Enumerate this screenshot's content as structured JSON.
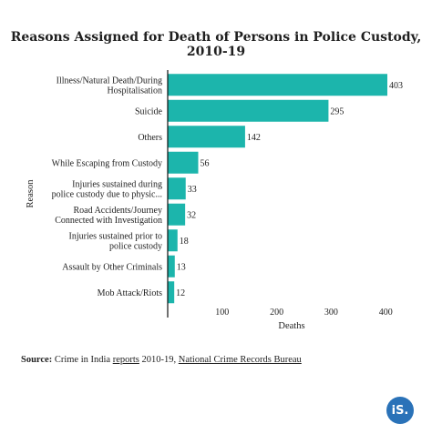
{
  "chart_data": {
    "type": "bar",
    "orientation": "horizontal",
    "title": "Reasons Assigned for Death of Persons in Police Custody, 2010-19",
    "xlabel": "Deaths",
    "ylabel": "Reason",
    "categories": [
      "Illness/Natural Death/During Hospitalisation",
      "Suicide",
      "Others",
      "While Escaping from Custody",
      "Injuries sustained during police custody due to physic...",
      "Road Accidents/Journey Connected with Investigation",
      "Injuries sustained prior to police custody",
      "Assault by Other Criminals",
      "Mob Attack/Riots"
    ],
    "category_lines": [
      [
        "Illness/Natural Death/During",
        "Hospitalisation"
      ],
      [
        "Suicide"
      ],
      [
        "Others"
      ],
      [
        "While Escaping from Custody"
      ],
      [
        "Injuries sustained during",
        "police custody due to physic..."
      ],
      [
        "Road Accidents/Journey",
        "Connected with Investigation"
      ],
      [
        "Injuries sustained prior to",
        "police custody"
      ],
      [
        "Assault by Other Criminals"
      ],
      [
        "Mob Attack/Riots"
      ]
    ],
    "values": [
      403,
      295,
      142,
      56,
      33,
      32,
      18,
      13,
      12
    ],
    "xlim": [
      0,
      415
    ],
    "xticks": [
      100,
      200,
      300,
      400
    ],
    "bar_color": "#1cb5ac",
    "grid": false,
    "legend": "none"
  },
  "footer": {
    "source_label": "Source:",
    "source_pre": " Crime in India ",
    "source_link1": "reports",
    "source_mid": " 2010-19, ",
    "source_link2": "National Crime Records Bureau"
  },
  "logo": {
    "text": "iS."
  }
}
